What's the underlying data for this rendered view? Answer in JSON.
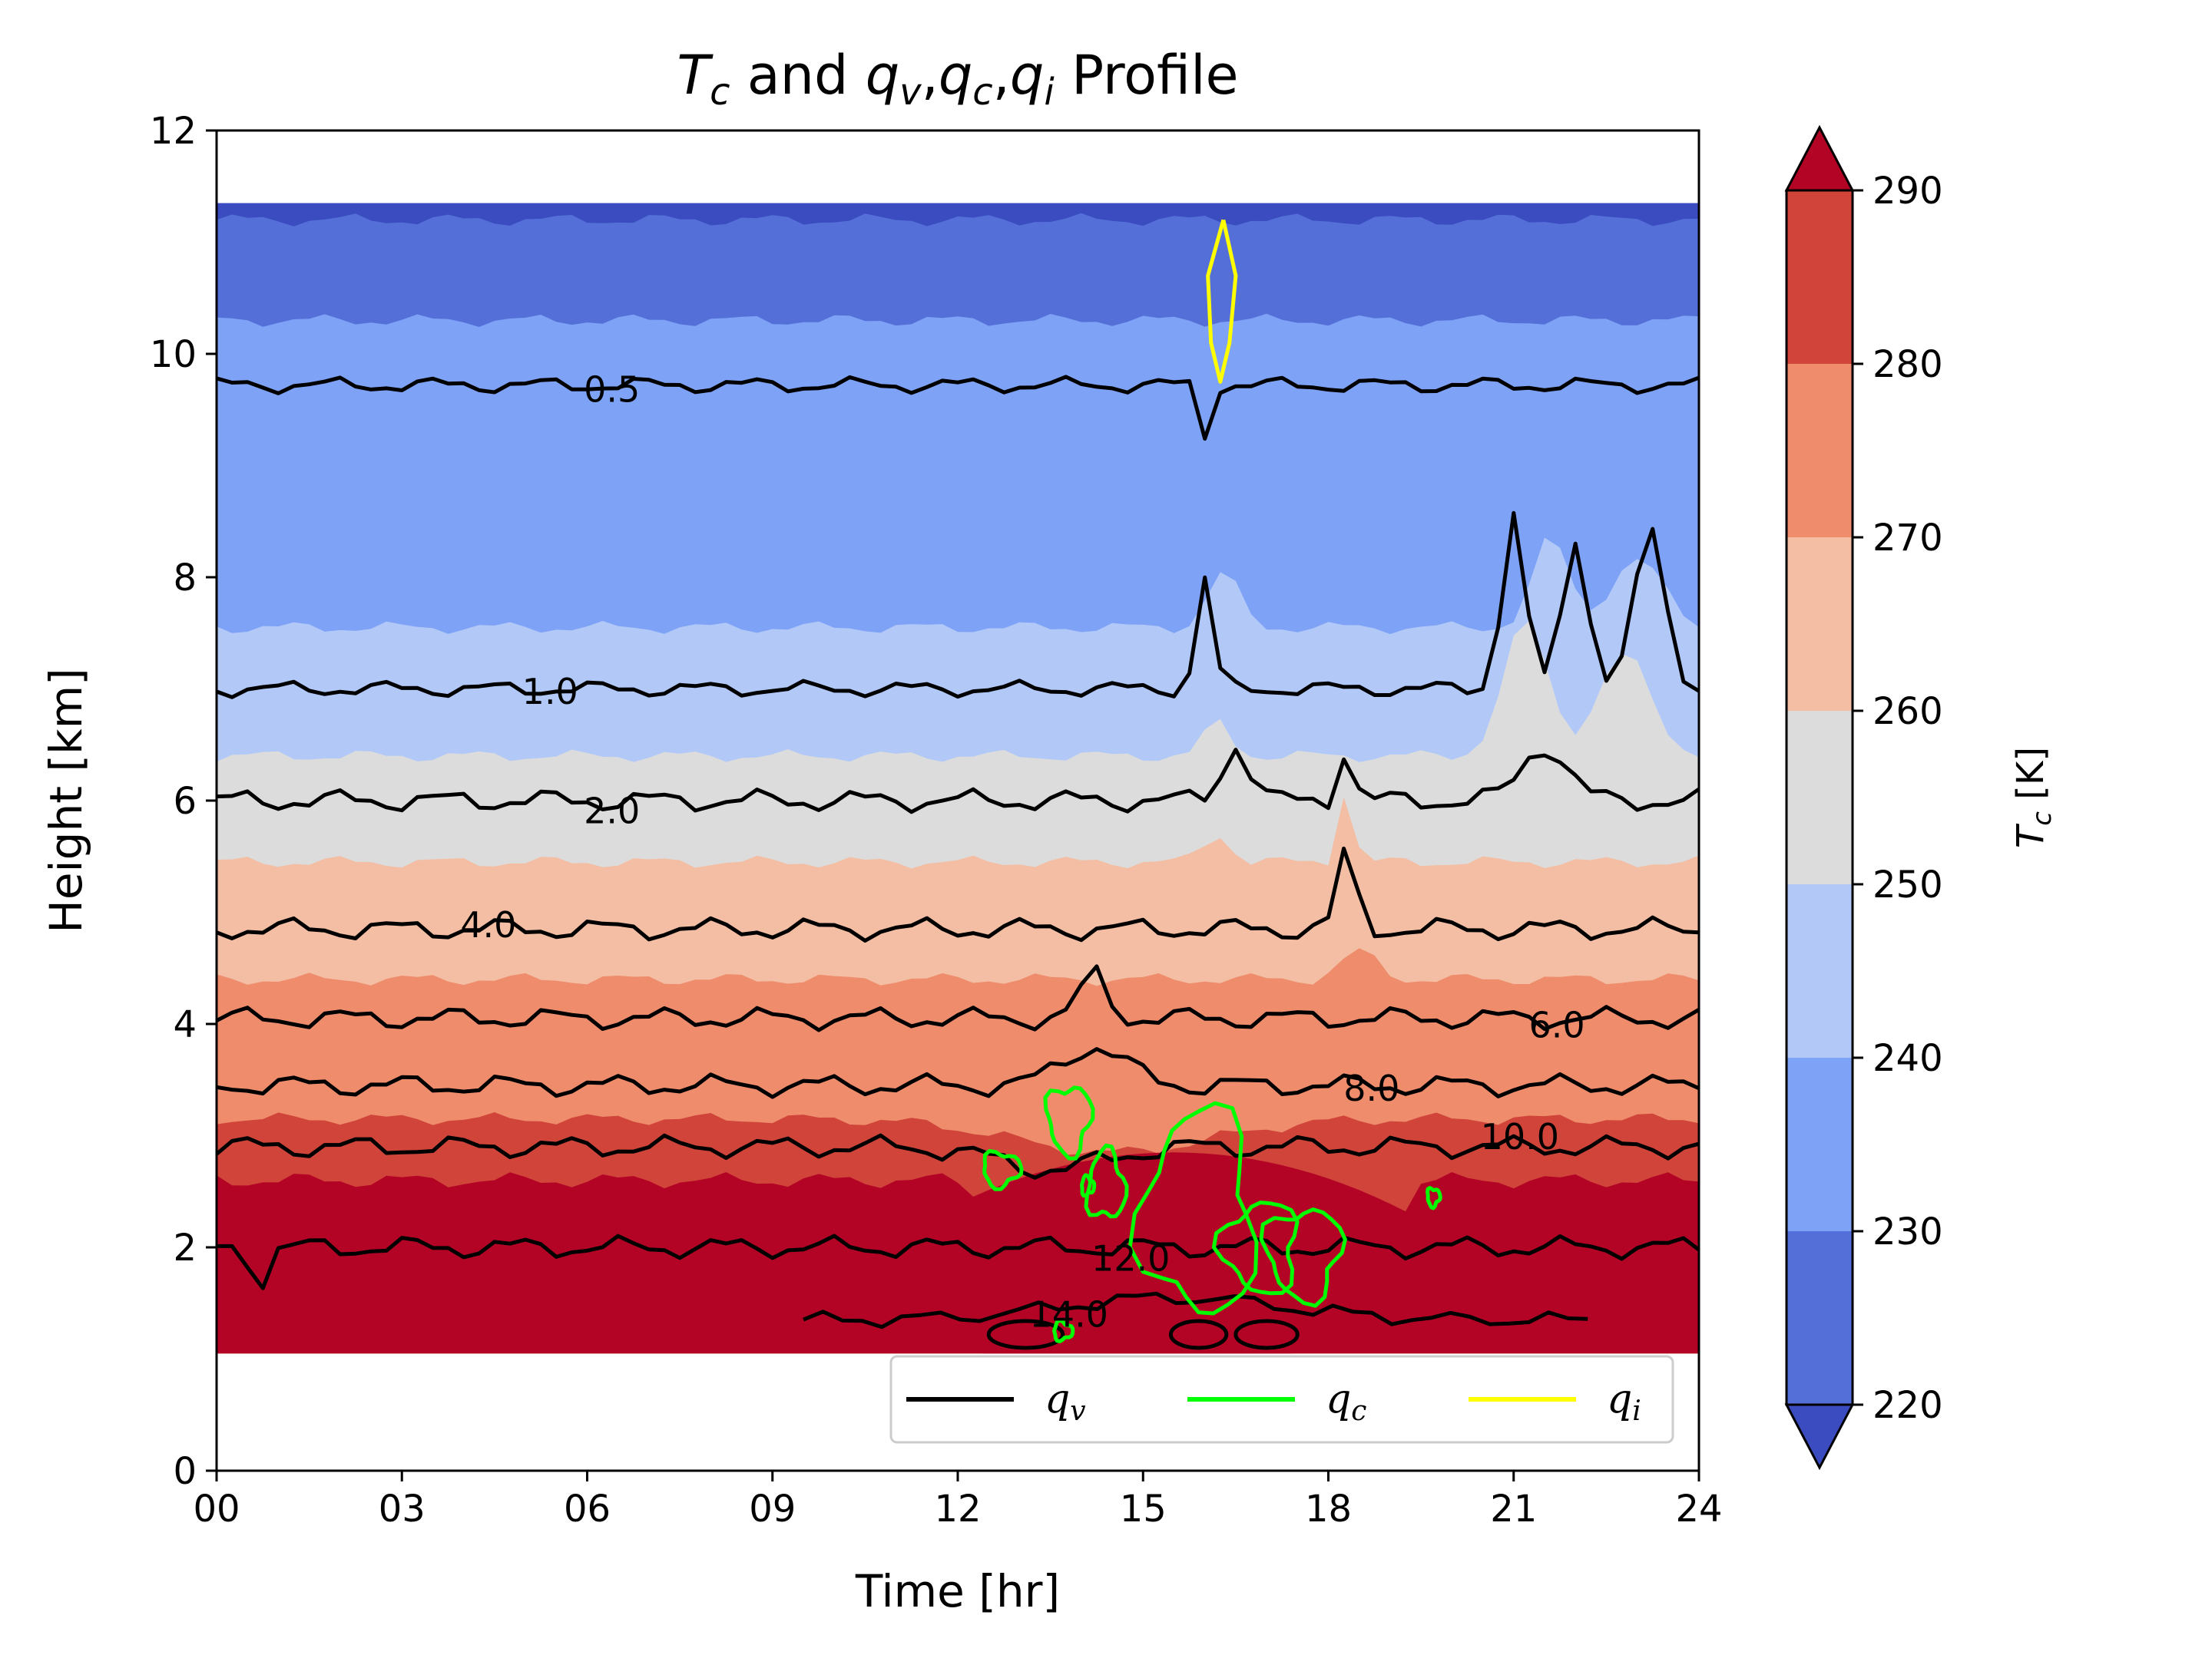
{
  "chart_data": {
    "type": "contour",
    "title": {
      "text": "T_c and q_v, q_c, q_i Profile",
      "parts": [
        {
          "t": "T",
          "sub": "c",
          "italic": true
        },
        {
          "t": " and ",
          "italic": false
        },
        {
          "t": "q",
          "sub": "v",
          "italic": true
        },
        {
          "t": ",",
          "italic": false
        },
        {
          "t": "q",
          "sub": "c",
          "italic": true
        },
        {
          "t": ",",
          "italic": false
        },
        {
          "t": "q",
          "sub": "i",
          "italic": true
        },
        {
          "t": " Profile",
          "italic": false
        }
      ]
    },
    "xlabel": "Time [hr]",
    "ylabel": "Height [km]",
    "xlim": [
      0,
      24
    ],
    "ylim": [
      0,
      12
    ],
    "xticks": [
      0,
      3,
      6,
      9,
      12,
      15,
      18,
      21,
      24
    ],
    "xtick_labels": [
      "00",
      "03",
      "06",
      "09",
      "12",
      "15",
      "18",
      "21",
      "24"
    ],
    "yticks": [
      0,
      2,
      4,
      6,
      8,
      10,
      12
    ],
    "ytick_labels": [
      "0",
      "2",
      "4",
      "6",
      "8",
      "10",
      "12"
    ],
    "data_height_range": [
      1.05,
      11.35
    ],
    "filled_field": {
      "name": "T_c",
      "levels": [
        220,
        230,
        240,
        250,
        260,
        270,
        280,
        290
      ],
      "colors": [
        "#5470d8",
        "#7ea2f5",
        "#b2c9f8",
        "#dcdcdc",
        "#f3bea3",
        "#ee8c6c",
        "#d0443a"
      ],
      "under_color": "#3b4cc0",
      "over_color": "#b40426",
      "band_tops_km": [
        {
          "level": 220,
          "top": 11.2
        },
        {
          "level": 230,
          "top": 10.3
        },
        {
          "level": 240,
          "top": 7.55
        },
        {
          "level": 250,
          "top": 6.4
        },
        {
          "level": 260,
          "top": 5.45
        },
        {
          "level": 270,
          "top": 4.4
        },
        {
          "level": 280,
          "top": 3.15
        },
        {
          "level": 290,
          "top": 2.6
        }
      ],
      "warm_core": {
        "x": [
          12.4,
          17.4
        ],
        "top": 1.35
      }
    },
    "qv_contours": [
      {
        "label": "0.5",
        "base": 9.72,
        "label_x": 6.4
      },
      {
        "label": "1.0",
        "base": 7.0,
        "label_x": 5.4
      },
      {
        "label": "2.0",
        "base": 6.0,
        "label_x": 6.4
      },
      {
        "label": "4.0",
        "base": 4.85,
        "label_x": 4.4
      },
      {
        "label": "6.0",
        "base": 4.05,
        "label_x": 21.7
      },
      {
        "label": "8.0",
        "base": 3.45,
        "label_x": 18.7
      },
      {
        "label": "10.0",
        "base": 2.9,
        "label_x": 21.1
      },
      {
        "label": "12.0",
        "base": 2.0,
        "label_x": 14.8
      },
      {
        "label": "14.0",
        "base": 1.35,
        "label_x": 13.8
      }
    ],
    "colorbar": {
      "label": "T_c [K]",
      "ticks": [
        220,
        230,
        240,
        250,
        260,
        270,
        280,
        290
      ],
      "tick_labels": [
        "220",
        "230",
        "240",
        "250",
        "260",
        "270",
        "280",
        "290"
      ],
      "extend": "both"
    },
    "legend": {
      "placement": "lower-right",
      "entries": [
        {
          "label": "q_v",
          "base": "q",
          "sub": "v",
          "color": "#000000"
        },
        {
          "label": "q_c",
          "base": "q",
          "sub": "c",
          "color": "#00ff00"
        },
        {
          "label": "q_i",
          "base": "q",
          "sub": "i",
          "color": "#ffff00"
        }
      ]
    },
    "series": [
      {
        "name": "q_v",
        "color": "#000000",
        "kind": "contour lines"
      },
      {
        "name": "q_c",
        "color": "#00ff00",
        "kind": "contour lines"
      },
      {
        "name": "q_i",
        "color": "#ffff00",
        "kind": "contour lines"
      }
    ]
  }
}
